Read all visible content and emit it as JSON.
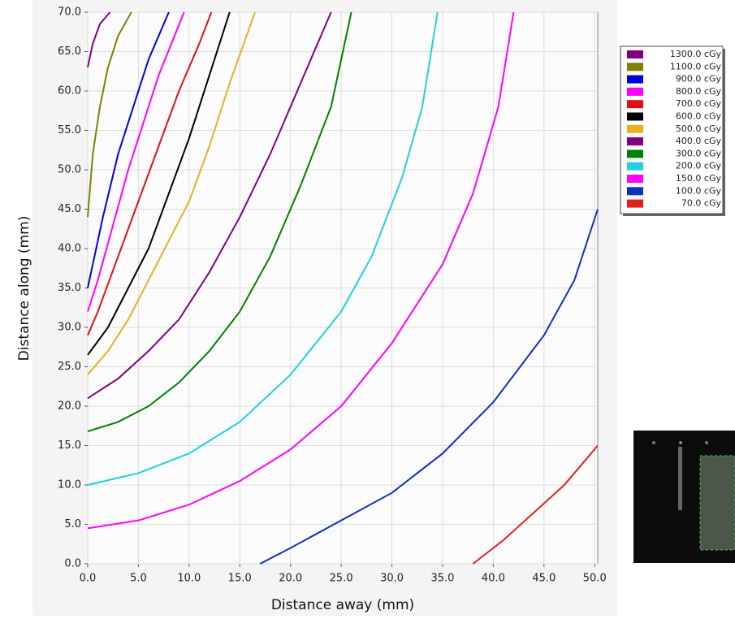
{
  "chart_data": {
    "type": "line",
    "x_label": "Distance away (mm)",
    "y_label": "Distance along (mm)",
    "xlim": [
      0,
      50.3
    ],
    "ylim": [
      0,
      70
    ],
    "xticks": [
      {
        "value": 0,
        "label": "0.0"
      },
      {
        "value": 5,
        "label": "5.0"
      },
      {
        "value": 10,
        "label": "10.0"
      },
      {
        "value": 15,
        "label": "15.0"
      },
      {
        "value": 20,
        "label": "20.0"
      },
      {
        "value": 25,
        "label": "25.0"
      },
      {
        "value": 30,
        "label": "30.0"
      },
      {
        "value": 35,
        "label": "35.0"
      },
      {
        "value": 40,
        "label": "40.0"
      },
      {
        "value": 45,
        "label": "45.0"
      },
      {
        "value": 50,
        "label": "50.0"
      }
    ],
    "yticks": [
      {
        "value": 0,
        "label": "0.0"
      },
      {
        "value": 5,
        "label": "5.0"
      },
      {
        "value": 10,
        "label": "10.0"
      },
      {
        "value": 15,
        "label": "15.0"
      },
      {
        "value": 20,
        "label": "20.0"
      },
      {
        "value": 25,
        "label": "25.0"
      },
      {
        "value": 30,
        "label": "30.0"
      },
      {
        "value": 35,
        "label": "35.0"
      },
      {
        "value": 40,
        "label": "40.0"
      },
      {
        "value": 45,
        "label": "45.0"
      },
      {
        "value": 50,
        "label": "50.0"
      },
      {
        "value": 55,
        "label": "55.0"
      },
      {
        "value": 60,
        "label": "60.0"
      },
      {
        "value": 65,
        "label": "65.0"
      },
      {
        "value": 70,
        "label": "70.0"
      }
    ],
    "grid": true,
    "series": [
      {
        "name": "1300.0 cGy",
        "color": "#800080",
        "x": [
          0,
          0.5,
          1.2,
          2.2
        ],
        "values": [
          63,
          66,
          68.5,
          70
        ]
      },
      {
        "name": "1100.0 cGy",
        "color": "#808000",
        "x": [
          0,
          0.5,
          1.2,
          2,
          3,
          4.3
        ],
        "values": [
          44,
          52,
          58,
          63,
          67,
          70
        ]
      },
      {
        "name": "900.0 cGy",
        "color": "#0000e0",
        "x": [
          0,
          0.5,
          1.5,
          3,
          4.5,
          6,
          8
        ],
        "values": [
          35,
          38,
          44,
          52,
          58,
          64,
          70
        ]
      },
      {
        "name": "800.0 cGy",
        "color": "#ff00ff",
        "x": [
          0,
          1,
          2.5,
          4,
          5.5,
          7,
          9.5
        ],
        "values": [
          32,
          36,
          43,
          50,
          56,
          62,
          70
        ]
      },
      {
        "name": "700.0 cGy",
        "color": "#e01010",
        "x": [
          0,
          1,
          3,
          5,
          7,
          9,
          11,
          12.2
        ],
        "values": [
          29,
          32,
          39,
          46,
          53,
          60,
          66,
          70
        ]
      },
      {
        "name": "600.0 cGy",
        "color": "#000000",
        "x": [
          0,
          2,
          4,
          6,
          8,
          10,
          12,
          14
        ],
        "values": [
          26.5,
          30,
          35,
          40,
          47,
          54,
          62,
          70
        ]
      },
      {
        "name": "500.0 cGy",
        "color": "#e8b020",
        "x": [
          0,
          2,
          4,
          6,
          8,
          10,
          12,
          14,
          16.5
        ],
        "values": [
          24,
          27,
          31,
          36,
          41,
          46,
          53,
          61,
          70
        ]
      },
      {
        "name": "400.0 cGy",
        "color": "#800080",
        "x": [
          0,
          3,
          6,
          9,
          12,
          15,
          18,
          21,
          24
        ],
        "values": [
          21,
          23.5,
          27,
          31,
          37,
          44,
          52,
          61,
          70
        ]
      },
      {
        "name": "300.0 cGy",
        "color": "#008000",
        "x": [
          0,
          3,
          6,
          9,
          12,
          15,
          18,
          21,
          24,
          26
        ],
        "values": [
          16.8,
          18,
          20,
          23,
          27,
          32,
          39,
          48,
          58,
          70
        ]
      },
      {
        "name": "200.0 cGy",
        "color": "#20d0e0",
        "x": [
          0,
          5,
          10,
          15,
          20,
          25,
          28,
          31,
          33,
          34.5
        ],
        "values": [
          10,
          11.5,
          14,
          18,
          24,
          32,
          39,
          49,
          58,
          70
        ]
      },
      {
        "name": "150.0 cGy",
        "color": "#ff00ff",
        "x": [
          0,
          5,
          10,
          15,
          20,
          25,
          30,
          35,
          38,
          40.5,
          42
        ],
        "values": [
          4.5,
          5.5,
          7.5,
          10.5,
          14.5,
          20,
          28,
          38,
          47,
          58,
          70
        ]
      },
      {
        "name": "100.0 cGy",
        "color": "#1030c0",
        "x": [
          17,
          20,
          25,
          30,
          35,
          40,
          45,
          48,
          50.3
        ],
        "values": [
          0,
          2,
          5.5,
          9,
          14,
          20.5,
          29,
          36,
          45
        ]
      },
      {
        "name": "70.0 cGy",
        "color": "#e02020",
        "x": [
          38,
          41,
          44,
          47,
          50.3
        ],
        "values": [
          0,
          3,
          6.5,
          10,
          15
        ]
      }
    ]
  }
}
